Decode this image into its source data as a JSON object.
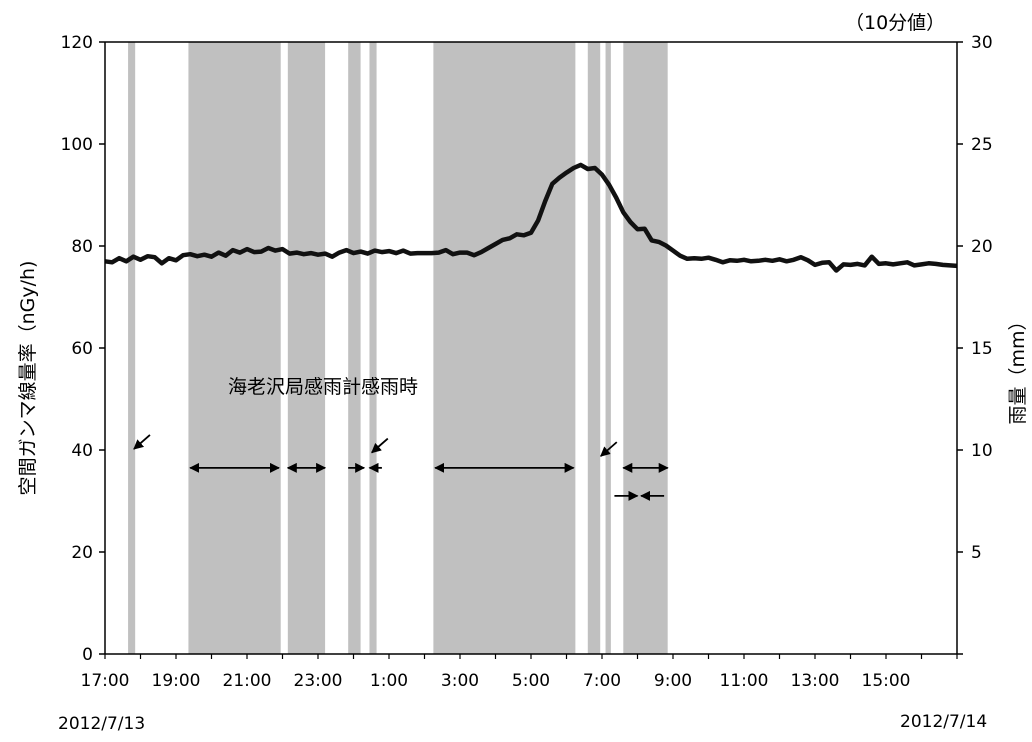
{
  "chart_data": {
    "type": "line",
    "unit_note": "（10分値）",
    "annotation": "海老沢局感雨計感雨時",
    "left_axis": {
      "label": "空間ガンマ線量率（nGy/h)",
      "ylim": [
        0,
        120
      ],
      "ticks": [
        "0",
        "20",
        "40",
        "60",
        "80",
        "100",
        "120"
      ]
    },
    "right_axis": {
      "label": "雨量（mm）",
      "ylim": [
        0,
        30
      ],
      "ticks": [
        "5",
        "10",
        "15",
        "20",
        "25",
        "30"
      ]
    },
    "x_axis": {
      "ticks": [
        "17:00",
        "19:00",
        "21:00",
        "23:00",
        "1:00",
        "3:00",
        "5:00",
        "7:00",
        "9:00",
        "11:00",
        "13:00",
        "15:00"
      ],
      "xlim_hours": [
        17,
        41
      ]
    },
    "date_left": "2012/7/13",
    "date_right": "2012/7/14",
    "rain_periods_hours": [
      [
        17.65,
        17.85
      ],
      [
        19.35,
        21.95
      ],
      [
        22.15,
        23.2
      ],
      [
        23.85,
        24.2
      ],
      [
        24.45,
        24.65
      ],
      [
        26.25,
        30.25
      ],
      [
        30.6,
        30.95
      ],
      [
        31.1,
        31.25
      ],
      [
        31.6,
        32.85
      ]
    ],
    "series": [
      {
        "values": [
          [
            17.0,
            77
          ],
          [
            17.2,
            76.8
          ],
          [
            17.4,
            77.6
          ],
          [
            17.6,
            77
          ],
          [
            17.8,
            77.9
          ],
          [
            18.0,
            77.3
          ],
          [
            18.2,
            78
          ],
          [
            18.4,
            77.8
          ],
          [
            18.6,
            76.6
          ],
          [
            18.8,
            77.6
          ],
          [
            19.0,
            77.2
          ],
          [
            19.2,
            78.2
          ],
          [
            19.4,
            78.4
          ],
          [
            19.6,
            78
          ],
          [
            19.8,
            78.3
          ],
          [
            20.0,
            77.9
          ],
          [
            20.2,
            78.7
          ],
          [
            20.4,
            78.1
          ],
          [
            20.6,
            79.2
          ],
          [
            20.8,
            78.7
          ],
          [
            21.0,
            79.4
          ],
          [
            21.2,
            78.8
          ],
          [
            21.4,
            78.9
          ],
          [
            21.6,
            79.6
          ],
          [
            21.8,
            79.1
          ],
          [
            22.0,
            79.4
          ],
          [
            22.2,
            78.5
          ],
          [
            22.4,
            78.7
          ],
          [
            22.6,
            78.4
          ],
          [
            22.8,
            78.6
          ],
          [
            23.0,
            78.3
          ],
          [
            23.2,
            78.5
          ],
          [
            23.4,
            77.9
          ],
          [
            23.6,
            78.7
          ],
          [
            23.8,
            79.2
          ],
          [
            24.0,
            78.6
          ],
          [
            24.2,
            78.9
          ],
          [
            24.4,
            78.5
          ],
          [
            24.6,
            79.1
          ],
          [
            24.8,
            78.8
          ],
          [
            25.0,
            79
          ],
          [
            25.2,
            78.6
          ],
          [
            25.4,
            79.1
          ],
          [
            25.6,
            78.5
          ],
          [
            25.8,
            78.6
          ],
          [
            26.0,
            78.6
          ],
          [
            26.2,
            78.6
          ],
          [
            26.4,
            78.7
          ],
          [
            26.6,
            79.2
          ],
          [
            26.8,
            78.4
          ],
          [
            27.0,
            78.7
          ],
          [
            27.2,
            78.7
          ],
          [
            27.4,
            78.2
          ],
          [
            27.6,
            78.8
          ],
          [
            27.8,
            79.6
          ],
          [
            28.0,
            80.4
          ],
          [
            28.2,
            81.2
          ],
          [
            28.4,
            81.5
          ],
          [
            28.6,
            82.3
          ],
          [
            28.8,
            82.1
          ],
          [
            29.0,
            82.6
          ],
          [
            29.2,
            85
          ],
          [
            29.4,
            88.8
          ],
          [
            29.6,
            92.2
          ],
          [
            29.8,
            93.4
          ],
          [
            30.0,
            94.4
          ],
          [
            30.2,
            95.3
          ],
          [
            30.4,
            95.9
          ],
          [
            30.6,
            95.1
          ],
          [
            30.8,
            95.3
          ],
          [
            31.0,
            94
          ],
          [
            31.2,
            92
          ],
          [
            31.4,
            89.5
          ],
          [
            31.6,
            86.6
          ],
          [
            31.8,
            84.7
          ],
          [
            32.0,
            83.3
          ],
          [
            32.2,
            83.4
          ],
          [
            32.4,
            81.1
          ],
          [
            32.6,
            80.8
          ],
          [
            32.8,
            80.1
          ],
          [
            33.0,
            79.1
          ],
          [
            33.2,
            78.1
          ],
          [
            33.4,
            77.5
          ],
          [
            33.6,
            77.6
          ],
          [
            33.8,
            77.5
          ],
          [
            34.0,
            77.7
          ],
          [
            34.2,
            77.3
          ],
          [
            34.4,
            76.8
          ],
          [
            34.6,
            77.2
          ],
          [
            34.8,
            77.1
          ],
          [
            35.0,
            77.3
          ],
          [
            35.2,
            77
          ],
          [
            35.4,
            77.1
          ],
          [
            35.6,
            77.3
          ],
          [
            35.8,
            77.1
          ],
          [
            36.0,
            77.4
          ],
          [
            36.2,
            77
          ],
          [
            36.4,
            77.3
          ],
          [
            36.6,
            77.8
          ],
          [
            36.8,
            77.2
          ],
          [
            37.0,
            76.3
          ],
          [
            37.2,
            76.7
          ],
          [
            37.4,
            76.8
          ],
          [
            37.6,
            75.2
          ],
          [
            37.8,
            76.4
          ],
          [
            38.0,
            76.3
          ],
          [
            38.2,
            76.5
          ],
          [
            38.4,
            76.2
          ],
          [
            38.6,
            77.9
          ],
          [
            38.8,
            76.5
          ],
          [
            39.0,
            76.6
          ],
          [
            39.2,
            76.4
          ],
          [
            39.4,
            76.6
          ],
          [
            39.6,
            76.8
          ],
          [
            39.8,
            76.2
          ],
          [
            40.0,
            76.4
          ],
          [
            40.2,
            76.6
          ],
          [
            40.4,
            76.5
          ],
          [
            40.6,
            76.3
          ],
          [
            40.8,
            76.2
          ],
          [
            41.0,
            76.1
          ]
        ]
      }
    ],
    "arrows": [
      {
        "type": "diag",
        "pos": [
          17.9,
          40.2
        ]
      },
      {
        "type": "both",
        "range": [
          19.4,
          21.9
        ],
        "y": 36.5
      },
      {
        "type": "both",
        "range": [
          22.15,
          23.2
        ],
        "y": 36.5
      },
      {
        "type": "right",
        "range": [
          23.85,
          24.3
        ],
        "y": 36.5
      },
      {
        "type": "left",
        "range": [
          24.45,
          24.8
        ],
        "y": 36.5
      },
      {
        "type": "diag",
        "pos": [
          24.6,
          39.5
        ]
      },
      {
        "type": "both",
        "range": [
          26.3,
          30.2
        ],
        "y": 36.5
      },
      {
        "type": "diag",
        "pos": [
          31.05,
          38.8
        ]
      },
      {
        "type": "both",
        "range": [
          31.6,
          32.85
        ],
        "y": 36.5
      },
      {
        "type": "right",
        "range": [
          31.35,
          32.0
        ],
        "y": 31.0
      },
      {
        "type": "left",
        "range": [
          32.1,
          32.75
        ],
        "y": 31.0
      }
    ]
  }
}
